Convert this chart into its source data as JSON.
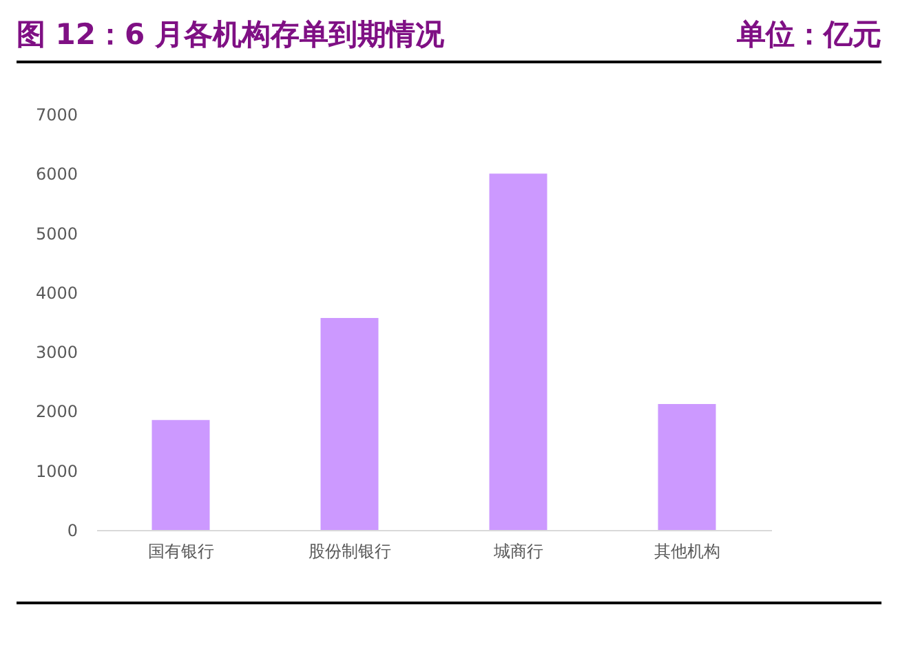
{
  "chart_data": {
    "type": "bar",
    "title": "图 12：6 月各机构存单到期情况",
    "subtitle": "单位：亿元",
    "categories": [
      "国有银行",
      "股份制银行",
      "城商行",
      "其他机构"
    ],
    "values": [
      1850,
      3570,
      6000,
      2120
    ],
    "color": "#cc99ff",
    "ylim": [
      0,
      7000
    ],
    "yticks": [
      0,
      1000,
      2000,
      3000,
      4000,
      5000,
      6000,
      7000
    ],
    "grid": false
  }
}
